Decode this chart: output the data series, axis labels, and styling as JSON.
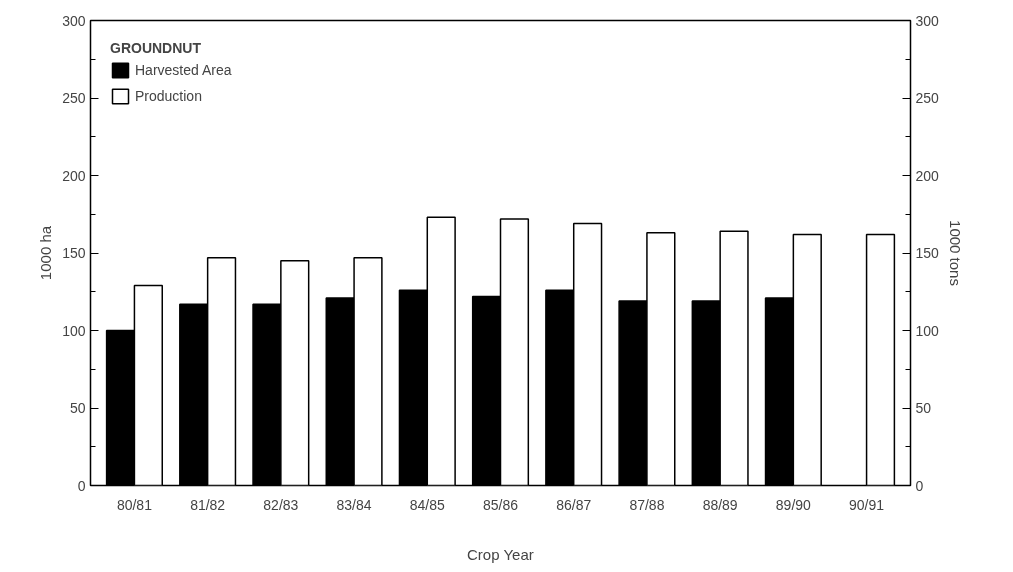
{
  "chart_data": {
    "type": "bar",
    "categories": [
      "80/81",
      "81/82",
      "82/83",
      "83/84",
      "84/85",
      "85/86",
      "86/87",
      "87/88",
      "88/89",
      "89/90",
      "90/91"
    ],
    "series": [
      {
        "name": "Harvested Area",
        "color": "#000000",
        "values": [
          100,
          117,
          117,
          121,
          126,
          122,
          126,
          119,
          119,
          121,
          null
        ]
      },
      {
        "name": "Production",
        "color": "#ffffff",
        "values": [
          129,
          147,
          145,
          147,
          173,
          172,
          169,
          163,
          164,
          162,
          162
        ]
      }
    ],
    "xlabel": "Crop Year",
    "ylabel": "1000 ha",
    "y2label": "1000 tons",
    "legend_title": "GROUNDNUT",
    "legend": "top left",
    "ylim": [
      0,
      300
    ],
    "yticks": [
      0,
      {
        "value": 25,
        "label": null
      },
      50,
      {
        "value": 75,
        "label": null
      },
      100,
      {
        "value": 125,
        "label": null
      },
      150,
      {
        "value": 175,
        "label": null
      },
      200,
      {
        "value": 225,
        "label": null
      },
      250,
      {
        "value": 275,
        "label": null
      },
      300
    ],
    "y2lim": [
      0,
      300
    ],
    "y2ticks": [
      0,
      {
        "value": 25,
        "label": null
      },
      50,
      {
        "value": 75,
        "label": null
      },
      100,
      {
        "value": 125,
        "label": null
      },
      150,
      {
        "value": 175,
        "label": null
      },
      200,
      {
        "value": 225,
        "label": null
      },
      250,
      {
        "value": 275,
        "label": null
      },
      300
    ],
    "grid": false
  }
}
